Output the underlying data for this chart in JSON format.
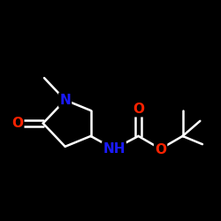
{
  "bg_color": "#000000",
  "bond_color": "#ffffff",
  "bond_width": 1.8,
  "atom_colors": {
    "N": "#1a1aff",
    "O": "#ff2200",
    "C": "#ffffff",
    "H": "#ffffff"
  },
  "font_size_atom": 11,
  "figsize": [
    2.5,
    2.5
  ],
  "dpi": 100,
  "xlim": [
    0,
    10
  ],
  "ylim": [
    0,
    10
  ]
}
